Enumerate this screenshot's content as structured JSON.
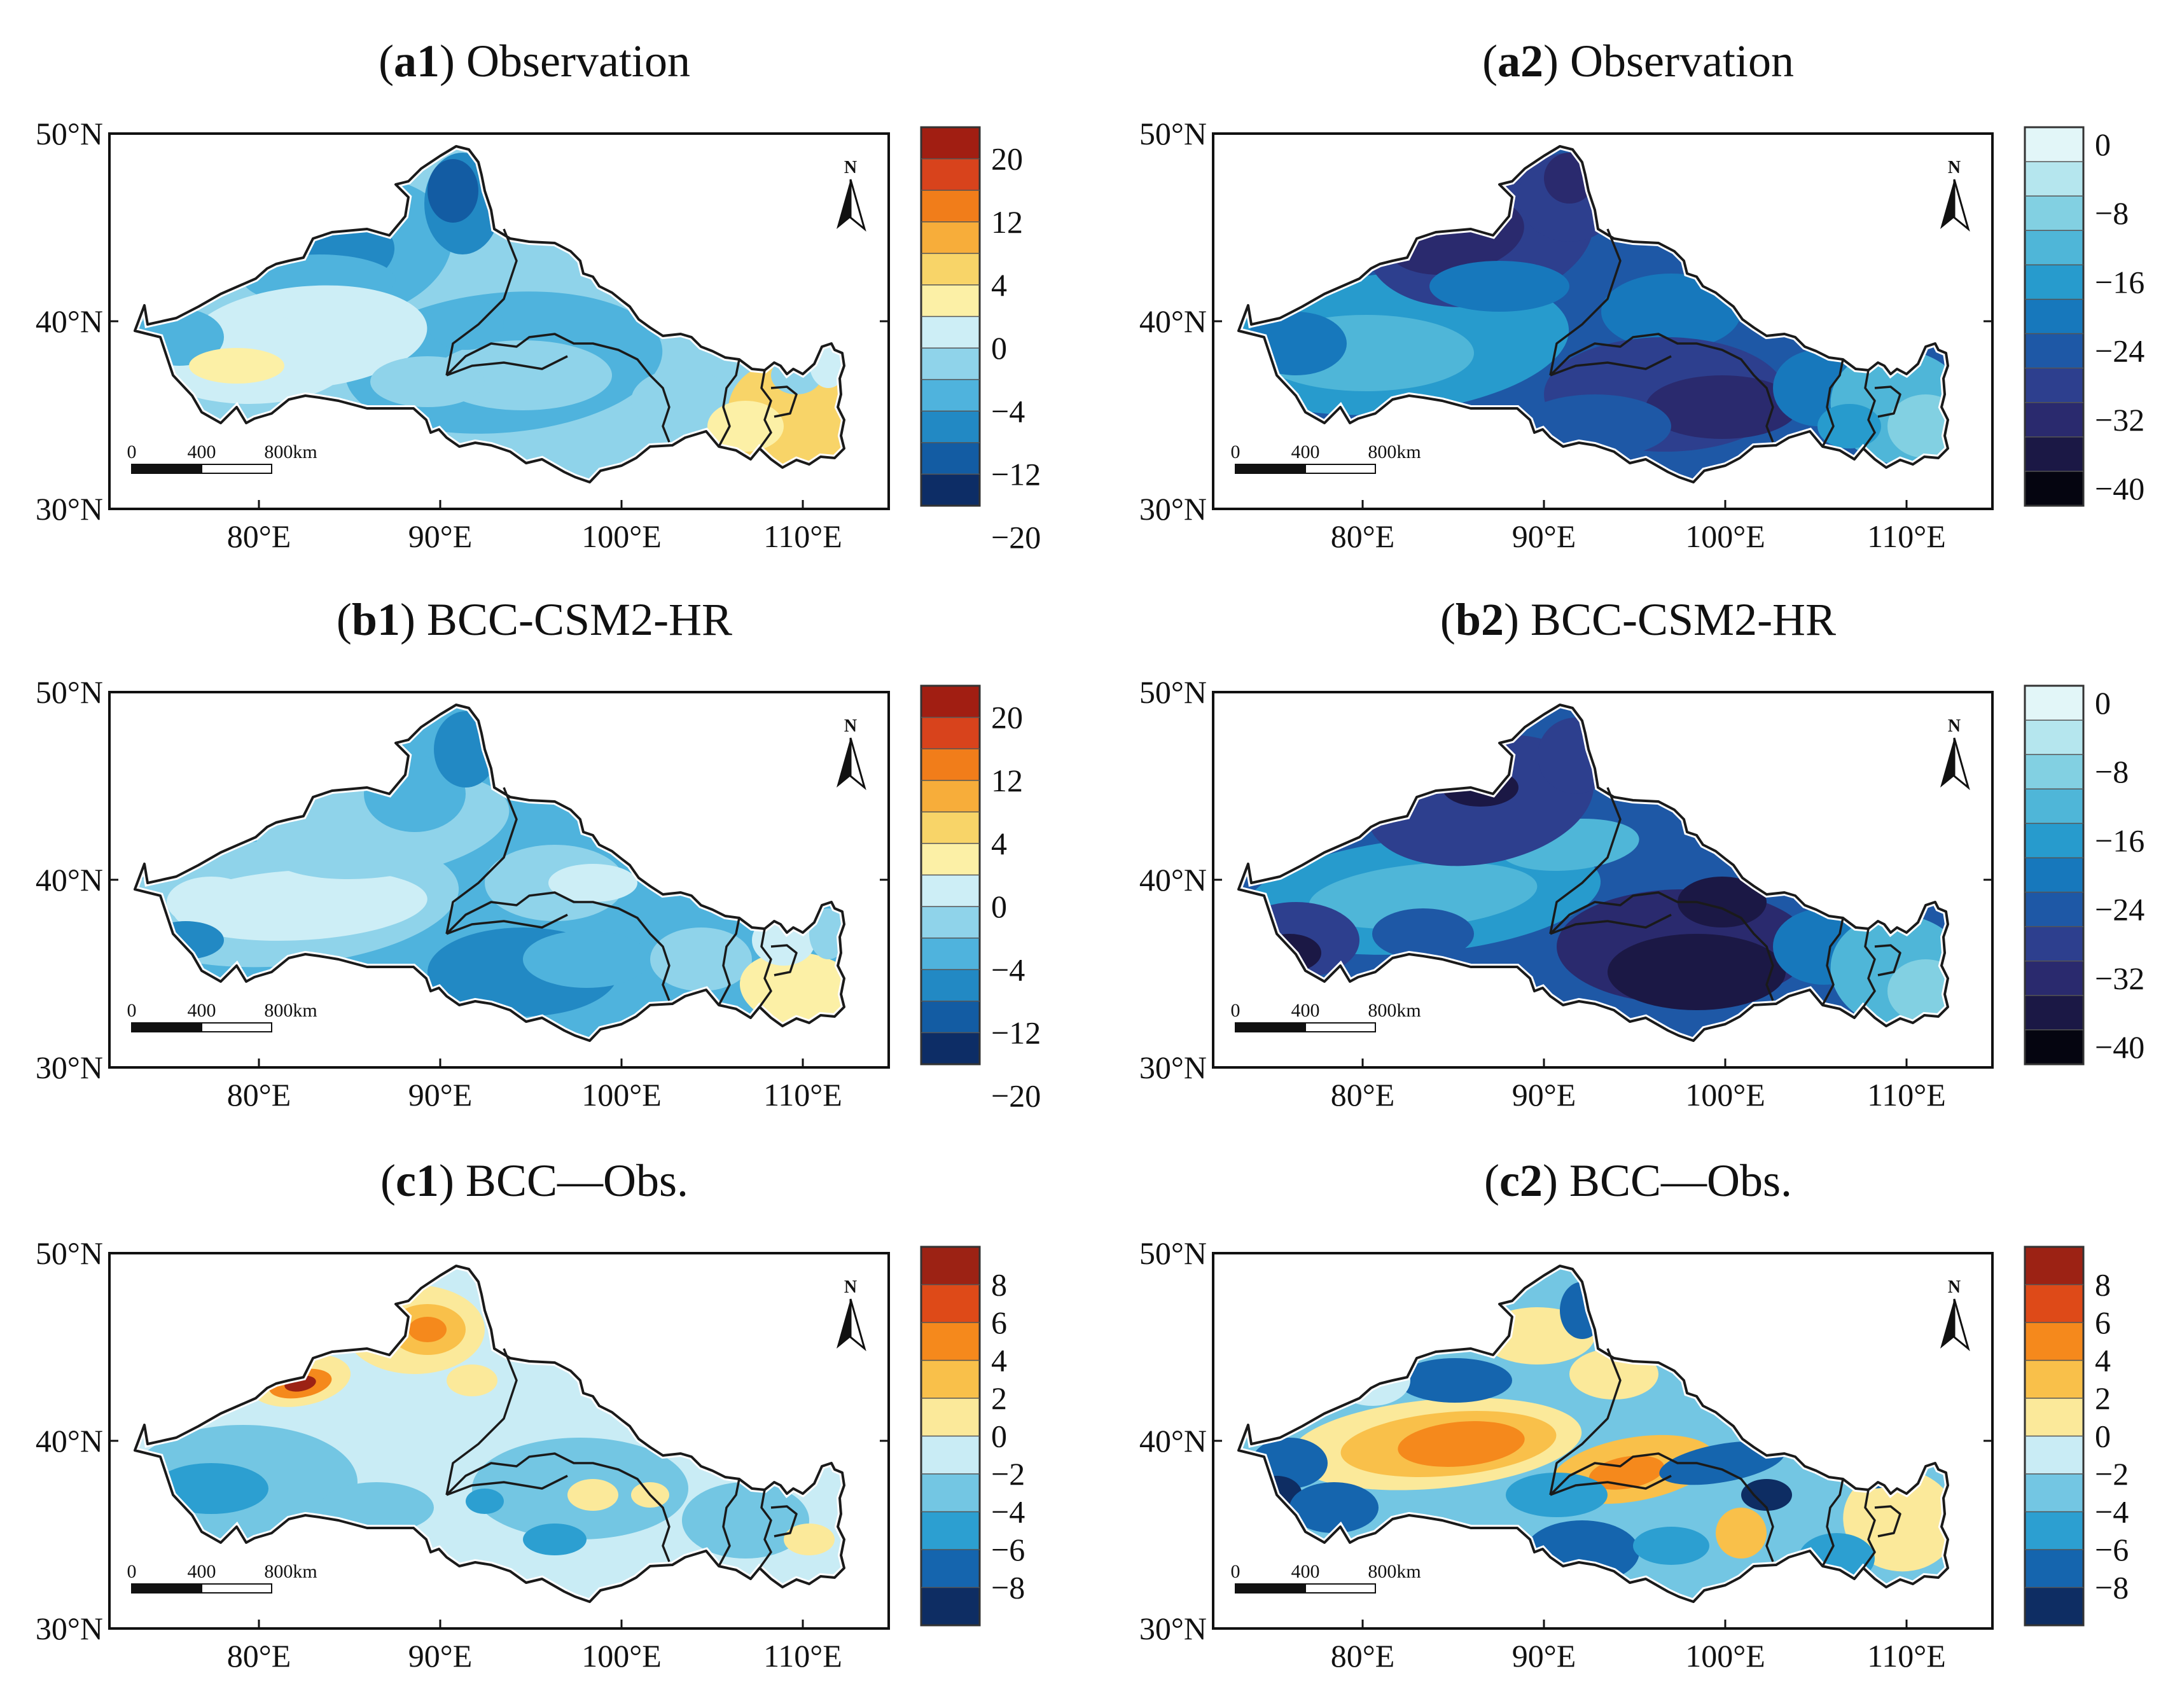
{
  "figure": {
    "panels": [
      {
        "id": "a1",
        "title_bold": "a1",
        "title_rest": "Observation",
        "variant": "obs1",
        "ylabels": [
          "50°N",
          "40°N",
          "30°N"
        ],
        "xlabels": [
          "80°E",
          "90°E",
          "100°E",
          "110°E"
        ],
        "north": "N",
        "scalebar": [
          "0",
          "400",
          "800km"
        ],
        "colorbar": {
          "labels": [
            "20",
            "12",
            "4",
            "0",
            "−4",
            "−12",
            "−20"
          ],
          "colors": [
            "#a11e12",
            "#d8431c",
            "#f17d1a",
            "#f7ad3a",
            "#f8d468",
            "#fcf0a6",
            "#cdeef6",
            "#8fd3ea",
            "#4fb3dd",
            "#2289c4",
            "#135ca3",
            "#0d2d66"
          ]
        }
      },
      {
        "id": "a2",
        "title_bold": "a2",
        "title_rest": "Observation",
        "variant": "obs2",
        "ylabels": [
          "50°N",
          "40°N",
          "30°N"
        ],
        "xlabels": [
          "80°E",
          "90°E",
          "100°E",
          "110°E"
        ],
        "north": "N",
        "scalebar": [
          "0",
          "400",
          "800km"
        ],
        "colorbar": {
          "labels": [
            "0",
            "−8",
            "−16",
            "−24",
            "−32",
            "−40"
          ],
          "colors": [
            "#e2f6f8",
            "#b5e6ee",
            "#82d0e2",
            "#4fb6d8",
            "#279bcd",
            "#1778bc",
            "#1e58a6",
            "#2d3f8e",
            "#2a2a6e",
            "#1b1845",
            "#050510"
          ]
        }
      },
      {
        "id": "b1",
        "title_bold": "b1",
        "title_rest": "BCC-CSM2-HR",
        "variant": "bcc1",
        "ylabels": [
          "50°N",
          "40°N",
          "30°N"
        ],
        "xlabels": [
          "80°E",
          "90°E",
          "100°E",
          "110°E"
        ],
        "north": "N",
        "scalebar": [
          "0",
          "400",
          "800km"
        ],
        "colorbar": {
          "labels": [
            "20",
            "12",
            "4",
            "0",
            "−4",
            "−12",
            "−20"
          ],
          "colors": [
            "#a11e12",
            "#d8431c",
            "#f17d1a",
            "#f7ad3a",
            "#f8d468",
            "#fcf0a6",
            "#cdeef6",
            "#8fd3ea",
            "#4fb3dd",
            "#2289c4",
            "#135ca3",
            "#0d2d66"
          ]
        }
      },
      {
        "id": "b2",
        "title_bold": "b2",
        "title_rest": "BCC-CSM2-HR",
        "variant": "bcc2",
        "ylabels": [
          "50°N",
          "40°N",
          "30°N"
        ],
        "xlabels": [
          "80°E",
          "90°E",
          "100°E",
          "110°E"
        ],
        "north": "N",
        "scalebar": [
          "0",
          "400",
          "800km"
        ],
        "colorbar": {
          "labels": [
            "0",
            "−8",
            "−16",
            "−24",
            "−32",
            "−40"
          ],
          "colors": [
            "#e2f6f8",
            "#b5e6ee",
            "#82d0e2",
            "#4fb6d8",
            "#279bcd",
            "#1778bc",
            "#1e58a6",
            "#2d3f8e",
            "#2a2a6e",
            "#1b1845",
            "#050510"
          ]
        }
      },
      {
        "id": "c1",
        "title_bold": "c1",
        "title_rest": "BCC—Obs.",
        "variant": "diff1",
        "ylabels": [
          "50°N",
          "40°N",
          "30°N"
        ],
        "xlabels": [
          "80°E",
          "90°E",
          "100°E",
          "110°E"
        ],
        "north": "N",
        "scalebar": [
          "0",
          "400",
          "800km"
        ],
        "colorbar": {
          "labels": [
            "8",
            "6",
            "4",
            "2",
            "0",
            "−2",
            "−4",
            "−6",
            "−8"
          ],
          "colors": [
            "#9c2214",
            "#de4a18",
            "#f5891c",
            "#f9c04a",
            "#fbe99a",
            "#c9ecf5",
            "#73c6e3",
            "#2c9fd1",
            "#1565ae",
            "#0e2d63"
          ]
        }
      },
      {
        "id": "c2",
        "title_bold": "c2",
        "title_rest": "BCC—Obs.",
        "variant": "diff2",
        "ylabels": [
          "50°N",
          "40°N",
          "30°N"
        ],
        "xlabels": [
          "80°E",
          "90°E",
          "100°E",
          "110°E"
        ],
        "north": "N",
        "scalebar": [
          "0",
          "400",
          "800km"
        ],
        "colorbar": {
          "labels": [
            "8",
            "6",
            "4",
            "2",
            "0",
            "−2",
            "−4",
            "−6",
            "−8"
          ],
          "colors": [
            "#9c2214",
            "#de4a18",
            "#f5891c",
            "#f9c04a",
            "#fbe99a",
            "#c9ecf5",
            "#73c6e3",
            "#2c9fd1",
            "#1565ae",
            "#0e2d63"
          ]
        }
      }
    ]
  }
}
